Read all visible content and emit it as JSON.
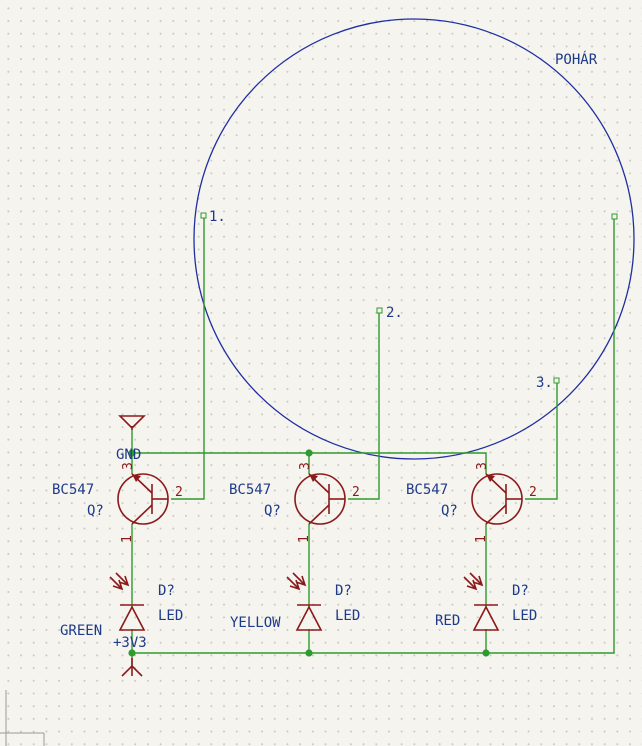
{
  "cup": {
    "label": "POHÁR",
    "electrodes": [
      {
        "label": "1."
      },
      {
        "label": "2."
      },
      {
        "label": "3."
      },
      {
        "label": ""
      }
    ]
  },
  "transistors": [
    {
      "value": "BC547",
      "ref": "Q?",
      "pin1": "1",
      "pin2": "2",
      "pin3": "3"
    },
    {
      "value": "BC547",
      "ref": "Q?",
      "pin1": "1",
      "pin2": "2",
      "pin3": "3"
    },
    {
      "value": "BC547",
      "ref": "Q?",
      "pin1": "1",
      "pin2": "2",
      "pin3": "3"
    }
  ],
  "leds": [
    {
      "ref": "D?",
      "value": "LED",
      "color_label": "GREEN"
    },
    {
      "ref": "D?",
      "value": "LED",
      "color_label": "YELLOW"
    },
    {
      "ref": "D?",
      "value": "LED",
      "color_label": "RED"
    }
  ],
  "power": {
    "gnd_label": "GND",
    "supply_label": "+3V3"
  },
  "colors": {
    "wire": "#2f9a2f",
    "symbol": "#8b1a1a",
    "text": "#1e3a8a",
    "outline": "#1f2fa3",
    "background": "#f5f4ef"
  }
}
